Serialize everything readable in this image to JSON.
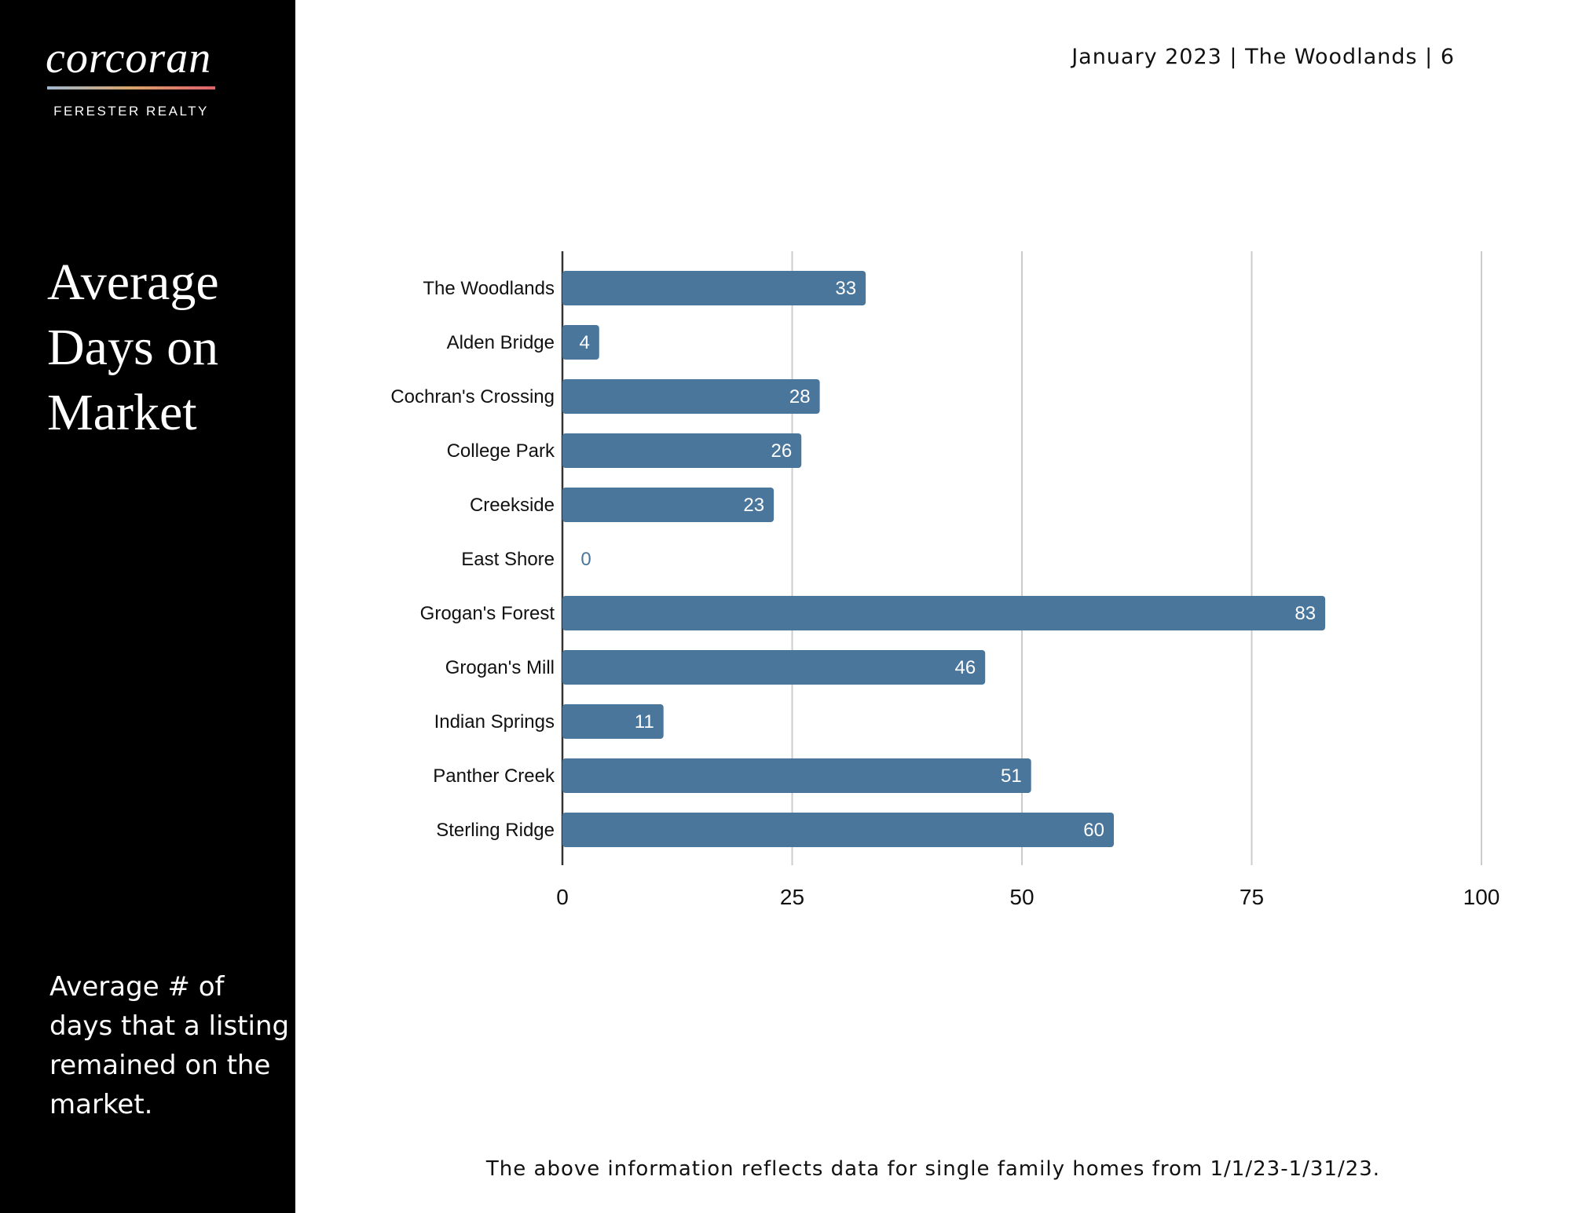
{
  "header": {
    "text": "January 2023 | The Woodlands | 6"
  },
  "brand": {
    "logo_text": "corcoran",
    "sub_text": "FERESTER REALTY"
  },
  "sidebar": {
    "title_lines": [
      "Average",
      "Days on",
      "Market"
    ],
    "description": "Average # of days that a listing remained on the market."
  },
  "footer": {
    "text": "The above information reflects data for single family homes from 1/1/23-1/31/23."
  },
  "colors": {
    "bar": "#4a769c",
    "grid": "#cccccc",
    "axis": "#333333",
    "sidebar": "#000000"
  },
  "chart_data": {
    "type": "bar",
    "orientation": "horizontal",
    "categories": [
      "The Woodlands",
      "Alden Bridge",
      "Cochran's Crossing",
      "College Park",
      "Creekside",
      "East Shore",
      "Grogan's Forest",
      "Grogan's Mill",
      "Indian Springs",
      "Panther Creek",
      "Sterling Ridge"
    ],
    "values": [
      33,
      4,
      28,
      26,
      23,
      0,
      83,
      46,
      11,
      51,
      60
    ],
    "xlim": [
      0,
      100
    ],
    "xticks": [
      0,
      25,
      50,
      75,
      100
    ],
    "grid": true,
    "data_labels": true
  }
}
